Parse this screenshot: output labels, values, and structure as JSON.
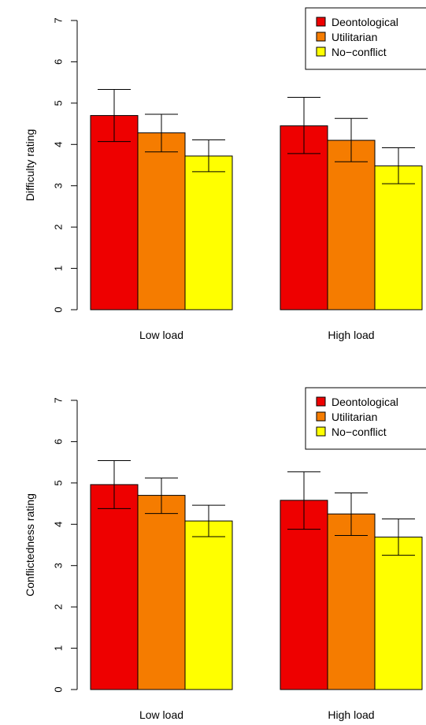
{
  "colors": {
    "deontological": "#ee0000",
    "utilitarian": "#f57c00",
    "no_conflict": "#ffff00"
  },
  "chart_data": [
    {
      "type": "bar",
      "ylabel": "Difficulty rating",
      "ylim": [
        0,
        7
      ],
      "yticks": [
        "0",
        "1",
        "2",
        "3",
        "4",
        "5",
        "6",
        "7"
      ],
      "categories": [
        "Low load",
        "High load"
      ],
      "legend": {
        "placement": "top-right",
        "entries": [
          "Deontological",
          "Utilitarian",
          "No−conflict"
        ]
      },
      "series": [
        {
          "name": "Deontological",
          "values": [
            4.7,
            4.45
          ],
          "err_low": [
            4.07,
            3.78
          ],
          "err_high": [
            5.33,
            5.14
          ]
        },
        {
          "name": "Utilitarian",
          "values": [
            4.28,
            4.1
          ],
          "err_low": [
            3.82,
            3.58
          ],
          "err_high": [
            4.73,
            4.63
          ]
        },
        {
          "name": "No−conflict",
          "values": [
            3.72,
            3.48
          ],
          "err_low": [
            3.34,
            3.05
          ],
          "err_high": [
            4.11,
            3.92
          ]
        }
      ]
    },
    {
      "type": "bar",
      "ylabel": "Conflictedness rating",
      "ylim": [
        0,
        7
      ],
      "yticks": [
        "0",
        "1",
        "2",
        "3",
        "4",
        "5",
        "6",
        "7"
      ],
      "categories": [
        "Low load",
        "High load"
      ],
      "legend": {
        "placement": "top-right",
        "entries": [
          "Deontological",
          "Utilitarian",
          "No−conflict"
        ]
      },
      "series": [
        {
          "name": "Deontological",
          "values": [
            4.96,
            4.58
          ],
          "err_low": [
            4.38,
            3.88
          ],
          "err_high": [
            5.54,
            5.27
          ]
        },
        {
          "name": "Utilitarian",
          "values": [
            4.7,
            4.25
          ],
          "err_low": [
            4.26,
            3.73
          ],
          "err_high": [
            5.12,
            4.76
          ]
        },
        {
          "name": "No−conflict",
          "values": [
            4.08,
            3.69
          ],
          "err_low": [
            3.7,
            3.25
          ],
          "err_high": [
            4.46,
            4.13
          ]
        }
      ]
    }
  ]
}
